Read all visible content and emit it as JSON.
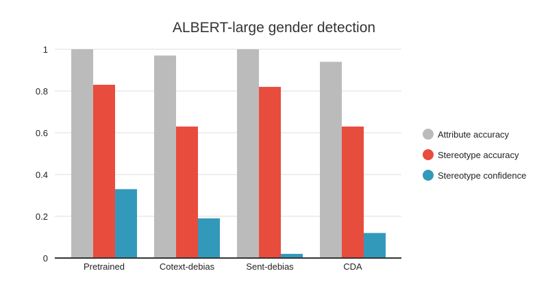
{
  "chart_data": {
    "type": "bar",
    "title": "ALBERT-large gender detection",
    "xlabel": "",
    "ylabel": "",
    "ylim": [
      0,
      1
    ],
    "yticks": [
      0,
      0.2,
      0.4,
      0.6,
      0.8,
      1
    ],
    "ytick_labels": [
      "0",
      "0.2",
      "0.4",
      "0.6",
      "0.8",
      "1"
    ],
    "grid": true,
    "legend_position": "right",
    "categories": [
      "Pretrained",
      "Cotext-debias",
      "Sent-debias",
      "CDA"
    ],
    "series": [
      {
        "name": "Attribute accuracy",
        "color": "#bbbbbb",
        "values": [
          1.0,
          0.97,
          1.0,
          0.94
        ]
      },
      {
        "name": "Stereotype accuracy",
        "color": "#e84c3d",
        "values": [
          0.83,
          0.63,
          0.82,
          0.63
        ]
      },
      {
        "name": "Stereotype confidence",
        "color": "#3399bb",
        "values": [
          0.33,
          0.19,
          0.02,
          0.12
        ]
      }
    ]
  }
}
